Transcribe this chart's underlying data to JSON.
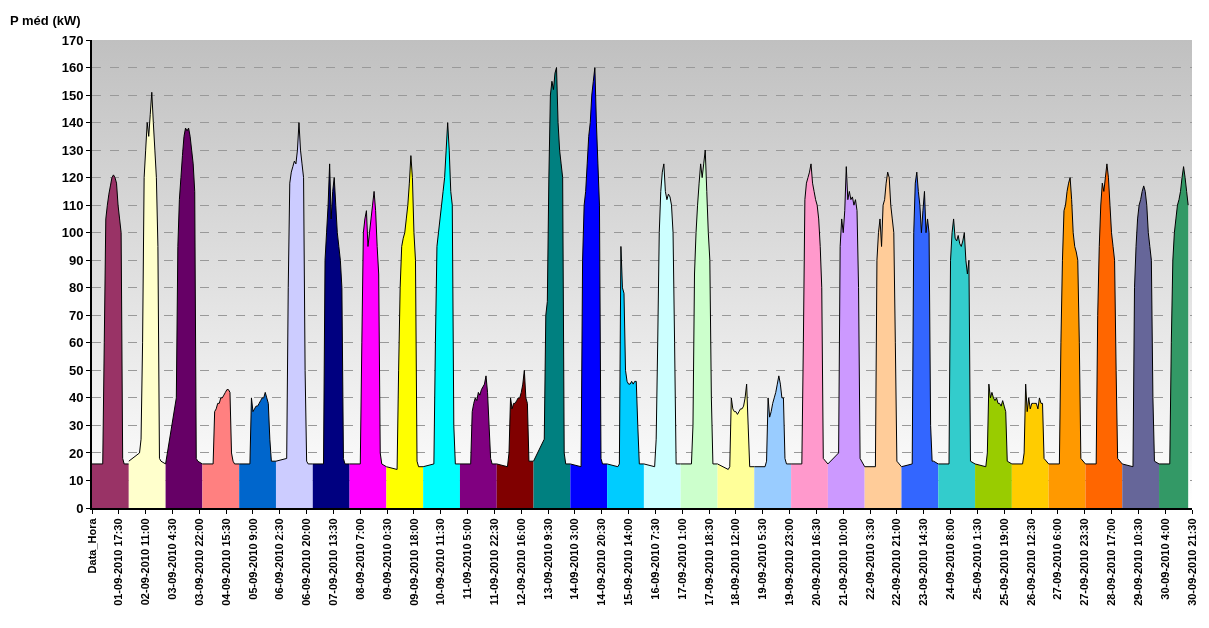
{
  "chart_data": {
    "type": "area",
    "ylabel": "P méd (kW)",
    "grid": "y",
    "ylim": [
      0,
      170
    ],
    "yticks": [
      0,
      10,
      20,
      30,
      40,
      50,
      60,
      70,
      80,
      90,
      100,
      110,
      120,
      130,
      140,
      150,
      160,
      170
    ],
    "xlim": [
      "2010-09-01T00:00",
      "2010-09-30T21:30"
    ],
    "xticks": [
      {
        "value": "2010-09-01T00:00",
        "label": "Data_Hora"
      },
      {
        "value": "2010-09-01T17:30",
        "label": "01-09-2010 17:30"
      },
      {
        "value": "2010-09-02T11:00",
        "label": "02-09-2010 11:00"
      },
      {
        "value": "2010-09-03T04:30",
        "label": "03-09-2010 4:30"
      },
      {
        "value": "2010-09-03T22:00",
        "label": "03-09-2010 22:00"
      },
      {
        "value": "2010-09-04T15:30",
        "label": "04-09-2010 15:30"
      },
      {
        "value": "2010-09-05T09:00",
        "label": "05-09-2010 9:00"
      },
      {
        "value": "2010-09-06T02:30",
        "label": "06-09-2010 2:30"
      },
      {
        "value": "2010-09-06T20:00",
        "label": "06-09-2010 20:00"
      },
      {
        "value": "2010-09-07T13:30",
        "label": "07-09-2010 13:30"
      },
      {
        "value": "2010-09-08T07:00",
        "label": "08-09-2010 7:00"
      },
      {
        "value": "2010-09-09T00:30",
        "label": "09-09-2010 0:30"
      },
      {
        "value": "2010-09-09T18:00",
        "label": "09-09-2010 18:00"
      },
      {
        "value": "2010-09-10T11:30",
        "label": "10-09-2010 11:30"
      },
      {
        "value": "2010-09-11T05:00",
        "label": "11-09-2010 5:00"
      },
      {
        "value": "2010-09-11T22:30",
        "label": "11-09-2010 22:30"
      },
      {
        "value": "2010-09-12T16:00",
        "label": "12-09-2010 16:00"
      },
      {
        "value": "2010-09-13T09:30",
        "label": "13-09-2010 9:30"
      },
      {
        "value": "2010-09-14T03:00",
        "label": "14-09-2010 3:00"
      },
      {
        "value": "2010-09-14T20:30",
        "label": "14-09-2010 20:30"
      },
      {
        "value": "2010-09-15T14:00",
        "label": "15-09-2010 14:00"
      },
      {
        "value": "2010-09-16T07:30",
        "label": "16-09-2010 7:30"
      },
      {
        "value": "2010-09-17T01:00",
        "label": "17-09-2010 1:00"
      },
      {
        "value": "2010-09-17T18:30",
        "label": "17-09-2010 18:30"
      },
      {
        "value": "2010-09-18T12:00",
        "label": "18-09-2010 12:00"
      },
      {
        "value": "2010-09-19T05:30",
        "label": "19-09-2010 5:30"
      },
      {
        "value": "2010-09-19T23:00",
        "label": "19-09-2010 23:00"
      },
      {
        "value": "2010-09-20T16:30",
        "label": "20-09-2010 16:30"
      },
      {
        "value": "2010-09-21T10:00",
        "label": "21-09-2010 10:00"
      },
      {
        "value": "2010-09-22T03:30",
        "label": "22-09-2010 3:30"
      },
      {
        "value": "2010-09-22T21:00",
        "label": "22-09-2010 21:00"
      },
      {
        "value": "2010-09-23T14:30",
        "label": "23-09-2010 14:30"
      },
      {
        "value": "2010-09-24T08:00",
        "label": "24-09-2010 8:00"
      },
      {
        "value": "2010-09-25T01:30",
        "label": "25-09-2010 1:30"
      },
      {
        "value": "2010-09-25T19:00",
        "label": "25-09-2010 19:00"
      },
      {
        "value": "2010-09-26T12:30",
        "label": "26-09-2010 12:30"
      },
      {
        "value": "2010-09-27T06:00",
        "label": "27-09-2010 6:00"
      },
      {
        "value": "2010-09-27T23:30",
        "label": "27-09-2010 23:30"
      },
      {
        "value": "2010-09-28T17:00",
        "label": "28-09-2010 17:00"
      },
      {
        "value": "2010-09-29T10:30",
        "label": "29-09-2010 10:30"
      },
      {
        "value": "2010-09-30T04:00",
        "label": "30-09-2010 4:00"
      },
      {
        "value": "2010-09-30T21:30",
        "label": "30-09-2010 21:30"
      }
    ],
    "series": [
      {
        "color": "#993366",
        "x": [
          "2010-09-01T00:00",
          "2010-09-01T07:00",
          "2010-09-01T08:00",
          "2010-09-01T09:00",
          "2010-09-01T10:00",
          "2010-09-01T11:00",
          "2010-09-01T12:00",
          "2010-09-01T13:00",
          "2010-09-01T14:00",
          "2010-09-01T15:00",
          "2010-09-01T16:00",
          "2010-09-01T17:00",
          "2010-09-01T18:00",
          "2010-09-01T19:00",
          "2010-09-01T20:00",
          "2010-09-01T21:00",
          "2010-09-02T00:00"
        ],
        "values": [
          16,
          16,
          60,
          105,
          110,
          114,
          117,
          120,
          121,
          120,
          118,
          110,
          105,
          100,
          18,
          16,
          16
        ]
      },
      {
        "color": "#ffffcc",
        "x": [
          "2010-09-02T00:00",
          "2010-09-02T07:00",
          "2010-09-02T08:00",
          "2010-09-02T09:00",
          "2010-09-02T10:00",
          "2010-09-02T11:00",
          "2010-09-02T12:00",
          "2010-09-02T13:00",
          "2010-09-02T14:00",
          "2010-09-02T15:00",
          "2010-09-02T16:00",
          "2010-09-02T17:00",
          "2010-09-02T18:00",
          "2010-09-02T19:00",
          "2010-09-02T20:00",
          "2010-09-02T21:00",
          "2010-09-03T00:00"
        ],
        "values": [
          17,
          20,
          25,
          60,
          120,
          130,
          140,
          135,
          143,
          151,
          140,
          130,
          120,
          95,
          18,
          17,
          16
        ]
      },
      {
        "color": "#660066",
        "x": [
          "2010-09-03T00:00",
          "2010-09-03T07:00",
          "2010-09-03T08:00",
          "2010-09-03T09:00",
          "2010-09-03T10:00",
          "2010-09-03T11:00",
          "2010-09-03T12:00",
          "2010-09-03T13:00",
          "2010-09-03T14:00",
          "2010-09-03T15:00",
          "2010-09-03T16:00",
          "2010-09-03T17:00",
          "2010-09-03T18:00",
          "2010-09-03T19:00",
          "2010-09-03T20:00",
          "2010-09-03T21:00",
          "2010-09-04T00:00"
        ],
        "values": [
          16,
          40,
          95,
          112,
          120,
          128,
          135,
          138,
          137,
          138,
          135,
          130,
          125,
          115,
          18,
          17,
          16
        ]
      },
      {
        "color": "#ff8080",
        "x": [
          "2010-09-04T00:00",
          "2010-09-04T07:00",
          "2010-09-04T08:00",
          "2010-09-04T09:00",
          "2010-09-04T10:00",
          "2010-09-04T11:00",
          "2010-09-04T12:00",
          "2010-09-04T13:00",
          "2010-09-04T14:00",
          "2010-09-04T15:00",
          "2010-09-04T16:00",
          "2010-09-04T17:00",
          "2010-09-04T18:00",
          "2010-09-04T19:00",
          "2010-09-04T20:00",
          "2010-09-04T21:00",
          "2010-09-05T00:00"
        ],
        "values": [
          16,
          16,
          35,
          36,
          38,
          38,
          40,
          40,
          41,
          42,
          43,
          43,
          42,
          20,
          17,
          16,
          16
        ]
      },
      {
        "color": "#0066cc",
        "x": [
          "2010-09-05T00:00",
          "2010-09-05T07:00",
          "2010-09-05T08:00",
          "2010-09-05T09:00",
          "2010-09-05T10:00",
          "2010-09-05T11:00",
          "2010-09-05T12:00",
          "2010-09-05T13:00",
          "2010-09-05T14:00",
          "2010-09-05T15:00",
          "2010-09-05T16:00",
          "2010-09-05T17:00",
          "2010-09-05T18:00",
          "2010-09-05T19:00",
          "2010-09-05T20:00",
          "2010-09-05T21:00",
          "2010-09-06T00:00"
        ],
        "values": [
          16,
          16,
          40,
          35,
          36,
          37,
          37,
          38,
          39,
          40,
          40,
          42,
          40,
          38,
          25,
          17,
          17
        ]
      },
      {
        "color": "#ccccff",
        "x": [
          "2010-09-06T00:00",
          "2010-09-06T07:00",
          "2010-09-06T08:00",
          "2010-09-06T09:00",
          "2010-09-06T10:00",
          "2010-09-06T11:00",
          "2010-09-06T12:00",
          "2010-09-06T13:00",
          "2010-09-06T14:00",
          "2010-09-06T15:00",
          "2010-09-06T16:00",
          "2010-09-06T17:00",
          "2010-09-06T18:00",
          "2010-09-06T19:00",
          "2010-09-06T20:00",
          "2010-09-06T21:00",
          "2010-09-07T00:00"
        ],
        "values": [
          17,
          18,
          80,
          118,
          122,
          124,
          126,
          125,
          130,
          140,
          130,
          125,
          120,
          50,
          17,
          16,
          16
        ]
      },
      {
        "color": "#000080",
        "x": [
          "2010-09-07T00:00",
          "2010-09-07T07:00",
          "2010-09-07T08:00",
          "2010-09-07T09:00",
          "2010-09-07T10:00",
          "2010-09-07T11:00",
          "2010-09-07T12:00",
          "2010-09-07T13:00",
          "2010-09-07T14:00",
          "2010-09-07T15:00",
          "2010-09-07T16:00",
          "2010-09-07T17:00",
          "2010-09-07T18:00",
          "2010-09-07T19:00",
          "2010-09-07T20:00",
          "2010-09-07T21:00",
          "2010-09-08T00:00"
        ],
        "values": [
          16,
          16,
          90,
          100,
          110,
          125,
          105,
          115,
          120,
          110,
          100,
          95,
          90,
          80,
          18,
          16,
          16
        ]
      },
      {
        "color": "#ff00ff",
        "x": [
          "2010-09-08T00:00",
          "2010-09-08T07:00",
          "2010-09-08T08:00",
          "2010-09-08T09:00",
          "2010-09-08T10:00",
          "2010-09-08T11:00",
          "2010-09-08T12:00",
          "2010-09-08T13:00",
          "2010-09-08T14:00",
          "2010-09-08T15:00",
          "2010-09-08T16:00",
          "2010-09-08T17:00",
          "2010-09-08T18:00",
          "2010-09-08T19:00",
          "2010-09-08T20:00",
          "2010-09-08T21:00",
          "2010-09-09T00:00"
        ],
        "values": [
          16,
          16,
          60,
          100,
          105,
          108,
          95,
          100,
          105,
          110,
          115,
          108,
          95,
          85,
          20,
          16,
          15
        ]
      },
      {
        "color": "#ffff00",
        "x": [
          "2010-09-09T00:00",
          "2010-09-09T07:00",
          "2010-09-09T08:00",
          "2010-09-09T09:00",
          "2010-09-09T10:00",
          "2010-09-09T11:00",
          "2010-09-09T12:00",
          "2010-09-09T13:00",
          "2010-09-09T14:00",
          "2010-09-09T15:00",
          "2010-09-09T16:00",
          "2010-09-09T17:00",
          "2010-09-09T18:00",
          "2010-09-09T19:00",
          "2010-09-09T20:00",
          "2010-09-09T21:00",
          "2010-09-10T00:00"
        ],
        "values": [
          15,
          14,
          50,
          80,
          95,
          98,
          100,
          105,
          110,
          118,
          128,
          120,
          100,
          90,
          17,
          15,
          15
        ]
      },
      {
        "color": "#00ffff",
        "x": [
          "2010-09-10T00:00",
          "2010-09-10T07:00",
          "2010-09-10T08:00",
          "2010-09-10T09:00",
          "2010-09-10T10:00",
          "2010-09-10T11:00",
          "2010-09-10T12:00",
          "2010-09-10T13:00",
          "2010-09-10T14:00",
          "2010-09-10T15:00",
          "2010-09-10T16:00",
          "2010-09-10T17:00",
          "2010-09-10T18:00",
          "2010-09-10T19:00",
          "2010-09-10T20:00",
          "2010-09-10T21:00",
          "2010-09-11T00:00"
        ],
        "values": [
          15,
          16,
          60,
          95,
          100,
          105,
          110,
          115,
          120,
          130,
          140,
          130,
          115,
          110,
          30,
          16,
          16
        ]
      },
      {
        "color": "#800080",
        "x": [
          "2010-09-11T00:00",
          "2010-09-11T07:00",
          "2010-09-11T08:00",
          "2010-09-11T09:00",
          "2010-09-11T10:00",
          "2010-09-11T11:00",
          "2010-09-11T12:00",
          "2010-09-11T13:00",
          "2010-09-11T14:00",
          "2010-09-11T15:00",
          "2010-09-11T16:00",
          "2010-09-11T17:00",
          "2010-09-11T18:00",
          "2010-09-11T19:00",
          "2010-09-11T20:00",
          "2010-09-11T21:00",
          "2010-09-12T00:00"
        ],
        "values": [
          16,
          16,
          35,
          38,
          40,
          39,
          42,
          41,
          43,
          44,
          45,
          48,
          42,
          30,
          18,
          16,
          16
        ]
      },
      {
        "color": "#800000",
        "x": [
          "2010-09-12T00:00",
          "2010-09-12T07:00",
          "2010-09-12T08:00",
          "2010-09-12T09:00",
          "2010-09-12T10:00",
          "2010-09-12T11:00",
          "2010-09-12T12:00",
          "2010-09-12T13:00",
          "2010-09-12T14:00",
          "2010-09-12T15:00",
          "2010-09-12T16:00",
          "2010-09-12T17:00",
          "2010-09-12T18:00",
          "2010-09-12T19:00",
          "2010-09-12T20:00",
          "2010-09-12T21:00",
          "2010-09-13T00:00"
        ],
        "values": [
          16,
          15,
          20,
          40,
          36,
          38,
          38,
          39,
          40,
          40,
          42,
          45,
          50,
          40,
          38,
          17,
          17
        ]
      },
      {
        "color": "#008080",
        "x": [
          "2010-09-13T00:00",
          "2010-09-13T07:00",
          "2010-09-13T08:00",
          "2010-09-13T09:00",
          "2010-09-13T10:00",
          "2010-09-13T11:00",
          "2010-09-13T12:00",
          "2010-09-13T13:00",
          "2010-09-13T14:00",
          "2010-09-13T15:00",
          "2010-09-13T16:00",
          "2010-09-13T17:00",
          "2010-09-13T18:00",
          "2010-09-13T19:00",
          "2010-09-13T20:00",
          "2010-09-13T21:00",
          "2010-09-14T00:00"
        ],
        "values": [
          17,
          25,
          70,
          75,
          120,
          150,
          155,
          152,
          158,
          160,
          140,
          130,
          125,
          120,
          20,
          16,
          16
        ]
      },
      {
        "color": "#0000ff",
        "x": [
          "2010-09-14T00:00",
          "2010-09-14T07:00",
          "2010-09-14T08:00",
          "2010-09-14T09:00",
          "2010-09-14T10:00",
          "2010-09-14T11:00",
          "2010-09-14T12:00",
          "2010-09-14T13:00",
          "2010-09-14T14:00",
          "2010-09-14T15:00",
          "2010-09-14T16:00",
          "2010-09-14T17:00",
          "2010-09-14T18:00",
          "2010-09-14T19:00",
          "2010-09-14T20:00",
          "2010-09-14T21:00",
          "2010-09-15T00:00"
        ],
        "values": [
          16,
          15,
          90,
          110,
          115,
          125,
          135,
          140,
          150,
          155,
          160,
          140,
          125,
          110,
          18,
          16,
          16
        ]
      },
      {
        "color": "#00ccff",
        "x": [
          "2010-09-15T00:00",
          "2010-09-15T07:00",
          "2010-09-15T08:00",
          "2010-09-15T09:00",
          "2010-09-15T10:00",
          "2010-09-15T11:00",
          "2010-09-15T12:00",
          "2010-09-15T13:00",
          "2010-09-15T14:00",
          "2010-09-15T15:00",
          "2010-09-15T16:00",
          "2010-09-15T17:00",
          "2010-09-15T18:00",
          "2010-09-15T19:00",
          "2010-09-15T20:00",
          "2010-09-15T21:00",
          "2010-09-16T00:00"
        ],
        "values": [
          16,
          15,
          16,
          95,
          80,
          78,
          50,
          46,
          45,
          45,
          46,
          45,
          46,
          46,
          30,
          16,
          16
        ]
      },
      {
        "color": "#ccffff",
        "x": [
          "2010-09-16T00:00",
          "2010-09-16T07:00",
          "2010-09-16T08:00",
          "2010-09-16T09:00",
          "2010-09-16T10:00",
          "2010-09-16T11:00",
          "2010-09-16T12:00",
          "2010-09-16T13:00",
          "2010-09-16T14:00",
          "2010-09-16T15:00",
          "2010-09-16T16:00",
          "2010-09-16T17:00",
          "2010-09-16T18:00",
          "2010-09-16T19:00",
          "2010-09-16T20:00",
          "2010-09-16T21:00",
          "2010-09-17T00:00"
        ],
        "values": [
          16,
          15,
          25,
          60,
          100,
          115,
          122,
          125,
          115,
          112,
          114,
          113,
          110,
          100,
          60,
          16,
          16
        ]
      },
      {
        "color": "#ccffcc",
        "x": [
          "2010-09-17T00:00",
          "2010-09-17T07:00",
          "2010-09-17T08:00",
          "2010-09-17T09:00",
          "2010-09-17T10:00",
          "2010-09-17T11:00",
          "2010-09-17T12:00",
          "2010-09-17T13:00",
          "2010-09-17T14:00",
          "2010-09-17T15:00",
          "2010-09-17T16:00",
          "2010-09-17T17:00",
          "2010-09-17T18:00",
          "2010-09-17T19:00",
          "2010-09-17T20:00",
          "2010-09-17T21:00",
          "2010-09-18T00:00"
        ],
        "values": [
          16,
          16,
          30,
          85,
          100,
          110,
          118,
          125,
          120,
          125,
          130,
          115,
          100,
          90,
          40,
          16,
          16
        ]
      },
      {
        "color": "#ffff99",
        "x": [
          "2010-09-18T00:00",
          "2010-09-18T07:00",
          "2010-09-18T08:00",
          "2010-09-18T09:00",
          "2010-09-18T10:00",
          "2010-09-18T11:00",
          "2010-09-18T12:00",
          "2010-09-18T13:00",
          "2010-09-18T14:00",
          "2010-09-18T15:00",
          "2010-09-18T16:00",
          "2010-09-18T17:00",
          "2010-09-18T18:00",
          "2010-09-18T19:00",
          "2010-09-18T20:00",
          "2010-09-18T21:00",
          "2010-09-19T00:00"
        ],
        "values": [
          16,
          14,
          15,
          40,
          36,
          35,
          35,
          34,
          35,
          36,
          36,
          37,
          40,
          45,
          30,
          15,
          15
        ]
      },
      {
        "color": "#99ccff",
        "x": [
          "2010-09-19T00:00",
          "2010-09-19T07:00",
          "2010-09-19T08:00",
          "2010-09-19T09:00",
          "2010-09-19T10:00",
          "2010-09-19T11:00",
          "2010-09-19T12:00",
          "2010-09-19T13:00",
          "2010-09-19T14:00",
          "2010-09-19T15:00",
          "2010-09-19T16:00",
          "2010-09-19T17:00",
          "2010-09-19T18:00",
          "2010-09-19T19:00",
          "2010-09-19T20:00",
          "2010-09-19T21:00",
          "2010-09-20T00:00"
        ],
        "values": [
          15,
          15,
          17,
          40,
          33,
          35,
          38,
          40,
          42,
          45,
          48,
          45,
          40,
          40,
          18,
          16,
          16
        ]
      },
      {
        "color": "#ff99cc",
        "x": [
          "2010-09-20T00:00",
          "2010-09-20T07:00",
          "2010-09-20T08:00",
          "2010-09-20T09:00",
          "2010-09-20T10:00",
          "2010-09-20T11:00",
          "2010-09-20T12:00",
          "2010-09-20T13:00",
          "2010-09-20T14:00",
          "2010-09-20T15:00",
          "2010-09-20T16:00",
          "2010-09-20T17:00",
          "2010-09-20T18:00",
          "2010-09-20T19:00",
          "2010-09-20T20:00",
          "2010-09-20T21:00",
          "2010-09-21T00:00"
        ],
        "values": [
          16,
          16,
          60,
          112,
          118,
          120,
          122,
          125,
          118,
          115,
          112,
          110,
          105,
          95,
          80,
          18,
          16
        ]
      },
      {
        "color": "#cc99ff",
        "x": [
          "2010-09-21T00:00",
          "2010-09-21T07:00",
          "2010-09-21T08:00",
          "2010-09-21T09:00",
          "2010-09-21T10:00",
          "2010-09-21T11:00",
          "2010-09-21T12:00",
          "2010-09-21T13:00",
          "2010-09-21T14:00",
          "2010-09-21T15:00",
          "2010-09-21T16:00",
          "2010-09-21T17:00",
          "2010-09-21T18:00",
          "2010-09-21T19:00",
          "2010-09-21T20:00",
          "2010-09-21T21:00",
          "2010-09-22T00:00"
        ],
        "values": [
          16,
          20,
          95,
          105,
          100,
          108,
          124,
          112,
          115,
          112,
          113,
          110,
          112,
          108,
          80,
          18,
          15
        ]
      },
      {
        "color": "#ffcc99",
        "x": [
          "2010-09-22T00:00",
          "2010-09-22T07:00",
          "2010-09-22T08:00",
          "2010-09-22T09:00",
          "2010-09-22T10:00",
          "2010-09-22T11:00",
          "2010-09-22T12:00",
          "2010-09-22T13:00",
          "2010-09-22T14:00",
          "2010-09-22T15:00",
          "2010-09-22T16:00",
          "2010-09-22T17:00",
          "2010-09-22T18:00",
          "2010-09-22T19:00",
          "2010-09-22T20:00",
          "2010-09-22T21:00",
          "2010-09-23T00:00"
        ],
        "values": [
          15,
          15,
          90,
          100,
          105,
          95,
          110,
          112,
          118,
          122,
          120,
          110,
          105,
          100,
          60,
          17,
          15
        ]
      },
      {
        "color": "#3366ff",
        "x": [
          "2010-09-23T00:00",
          "2010-09-23T07:00",
          "2010-09-23T08:00",
          "2010-09-23T09:00",
          "2010-09-23T10:00",
          "2010-09-23T11:00",
          "2010-09-23T12:00",
          "2010-09-23T13:00",
          "2010-09-23T14:00",
          "2010-09-23T15:00",
          "2010-09-23T16:00",
          "2010-09-23T17:00",
          "2010-09-23T18:00",
          "2010-09-23T19:00",
          "2010-09-23T20:00",
          "2010-09-23T21:00",
          "2010-09-24T00:00"
        ],
        "values": [
          15,
          16,
          100,
          118,
          122,
          115,
          110,
          100,
          108,
          115,
          100,
          105,
          100,
          30,
          17,
          17,
          16
        ]
      },
      {
        "color": "#33cccc",
        "x": [
          "2010-09-24T00:00",
          "2010-09-24T07:00",
          "2010-09-24T08:00",
          "2010-09-24T09:00",
          "2010-09-24T10:00",
          "2010-09-24T11:00",
          "2010-09-24T12:00",
          "2010-09-24T13:00",
          "2010-09-24T14:00",
          "2010-09-24T15:00",
          "2010-09-24T16:00",
          "2010-09-24T17:00",
          "2010-09-24T18:00",
          "2010-09-24T19:00",
          "2010-09-24T20:00",
          "2010-09-24T21:00",
          "2010-09-25T00:00"
        ],
        "values": [
          16,
          16,
          90,
          100,
          105,
          98,
          97,
          99,
          96,
          95,
          97,
          100,
          90,
          85,
          90,
          17,
          16
        ]
      },
      {
        "color": "#99cc00",
        "x": [
          "2010-09-25T00:00",
          "2010-09-25T07:00",
          "2010-09-25T08:00",
          "2010-09-25T09:00",
          "2010-09-25T10:00",
          "2010-09-25T11:00",
          "2010-09-25T12:00",
          "2010-09-25T13:00",
          "2010-09-25T14:00",
          "2010-09-25T15:00",
          "2010-09-25T16:00",
          "2010-09-25T17:00",
          "2010-09-25T18:00",
          "2010-09-25T19:00",
          "2010-09-25T20:00",
          "2010-09-25T21:00",
          "2010-09-26T00:00"
        ],
        "values": [
          16,
          15,
          20,
          45,
          40,
          42,
          40,
          39,
          40,
          38,
          38,
          37,
          39,
          37,
          35,
          17,
          16
        ]
      },
      {
        "color": "#ffcc00",
        "x": [
          "2010-09-26T00:00",
          "2010-09-26T07:00",
          "2010-09-26T08:00",
          "2010-09-26T09:00",
          "2010-09-26T10:00",
          "2010-09-26T11:00",
          "2010-09-26T12:00",
          "2010-09-26T13:00",
          "2010-09-26T14:00",
          "2010-09-26T15:00",
          "2010-09-26T16:00",
          "2010-09-26T17:00",
          "2010-09-26T18:00",
          "2010-09-26T19:00",
          "2010-09-26T20:00",
          "2010-09-26T21:00",
          "2010-09-27T00:00"
        ],
        "values": [
          16,
          16,
          20,
          45,
          35,
          40,
          36,
          38,
          38,
          38,
          38,
          36,
          40,
          38,
          38,
          18,
          16
        ]
      },
      {
        "color": "#ff9900",
        "x": [
          "2010-09-27T00:00",
          "2010-09-27T07:00",
          "2010-09-27T08:00",
          "2010-09-27T09:00",
          "2010-09-27T10:00",
          "2010-09-27T11:00",
          "2010-09-27T12:00",
          "2010-09-27T13:00",
          "2010-09-27T14:00",
          "2010-09-27T15:00",
          "2010-09-27T16:00",
          "2010-09-27T17:00",
          "2010-09-27T18:00",
          "2010-09-27T19:00",
          "2010-09-27T20:00",
          "2010-09-27T21:00",
          "2010-09-28T00:00"
        ],
        "values": [
          16,
          16,
          60,
          90,
          108,
          110,
          115,
          118,
          120,
          112,
          100,
          95,
          93,
          90,
          60,
          18,
          16
        ]
      },
      {
        "color": "#ff6600",
        "x": [
          "2010-09-28T00:00",
          "2010-09-28T07:00",
          "2010-09-28T08:00",
          "2010-09-28T09:00",
          "2010-09-28T10:00",
          "2010-09-28T11:00",
          "2010-09-28T12:00",
          "2010-09-28T13:00",
          "2010-09-28T14:00",
          "2010-09-28T15:00",
          "2010-09-28T16:00",
          "2010-09-28T17:00",
          "2010-09-28T18:00",
          "2010-09-28T19:00",
          "2010-09-28T20:00",
          "2010-09-28T21:00",
          "2010-09-29T00:00"
        ],
        "values": [
          16,
          16,
          70,
          95,
          110,
          118,
          115,
          120,
          125,
          120,
          110,
          100,
          95,
          90,
          50,
          18,
          16
        ]
      },
      {
        "color": "#666699",
        "x": [
          "2010-09-29T00:00",
          "2010-09-29T07:00",
          "2010-09-29T08:00",
          "2010-09-29T09:00",
          "2010-09-29T10:00",
          "2010-09-29T11:00",
          "2010-09-29T12:00",
          "2010-09-29T13:00",
          "2010-09-29T14:00",
          "2010-09-29T15:00",
          "2010-09-29T16:00",
          "2010-09-29T17:00",
          "2010-09-29T18:00",
          "2010-09-29T19:00",
          "2010-09-29T20:00",
          "2010-09-29T21:00",
          "2010-09-30T00:00"
        ],
        "values": [
          16,
          15,
          80,
          95,
          105,
          110,
          112,
          115,
          117,
          115,
          110,
          100,
          95,
          90,
          40,
          17,
          16
        ]
      },
      {
        "color": "#339966",
        "x": [
          "2010-09-30T00:00",
          "2010-09-30T07:00",
          "2010-09-30T08:00",
          "2010-09-30T09:00",
          "2010-09-30T10:00",
          "2010-09-30T11:00",
          "2010-09-30T12:00",
          "2010-09-30T13:00",
          "2010-09-30T14:00",
          "2010-09-30T15:00",
          "2010-09-30T16:00",
          "2010-09-30T17:00",
          "2010-09-30T18:00",
          "2010-09-30T19:00"
        ],
        "values": [
          16,
          16,
          60,
          90,
          100,
          105,
          110,
          112,
          115,
          120,
          124,
          120,
          115,
          110
        ]
      }
    ]
  }
}
